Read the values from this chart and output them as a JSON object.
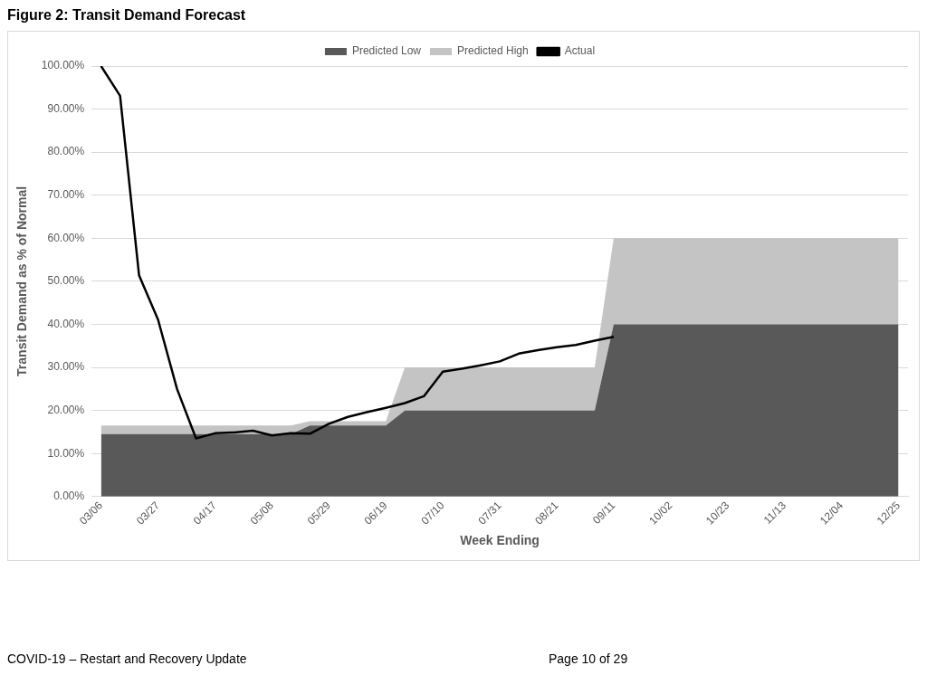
{
  "chart_data": {
    "type": "area",
    "title": "Figure 2: Transit Demand Forecast",
    "xlabel": "Week Ending",
    "ylabel": "Transit Demand as % of Normal",
    "categories": [
      "03/06",
      null,
      null,
      "03/27",
      null,
      null,
      "04/17",
      null,
      null,
      "05/08",
      null,
      null,
      "05/29",
      null,
      null,
      "06/19",
      null,
      null,
      "07/10",
      null,
      null,
      "07/31",
      null,
      null,
      "08/21",
      null,
      null,
      "09/11",
      null,
      null,
      "10/02",
      null,
      null,
      "10/23",
      null,
      null,
      "11/13",
      null,
      null,
      "12/04",
      null,
      null,
      "12/25"
    ],
    "series": [
      {
        "name": "Predicted Low",
        "type": "area",
        "color": "#595959",
        "values": [
          14.5,
          14.5,
          14.5,
          14.5,
          14.5,
          14.5,
          14.5,
          14.5,
          14.5,
          14.5,
          14.5,
          16.5,
          16.5,
          16.5,
          16.5,
          16.5,
          20,
          20,
          20,
          20,
          20,
          20,
          20,
          20,
          20,
          20,
          20,
          40,
          40,
          40,
          40,
          40,
          40,
          40,
          40,
          40,
          40,
          40,
          40,
          40,
          40,
          40,
          40
        ]
      },
      {
        "name": "Predicted High",
        "type": "area",
        "color": "#c4c4c4",
        "values": [
          2,
          2,
          2,
          2,
          2,
          2,
          2,
          2,
          2,
          2,
          2,
          1,
          1,
          1,
          1,
          1,
          10,
          10,
          10,
          10,
          10,
          10,
          10,
          10,
          10,
          10,
          10,
          20,
          20,
          20,
          20,
          20,
          20,
          20,
          20,
          20,
          20,
          20,
          20,
          20,
          20,
          20,
          20
        ]
      },
      {
        "name": "Actual",
        "type": "line",
        "color": "#000000",
        "values": [
          100,
          93.1,
          51.4,
          41.1,
          25.0,
          13.5,
          14.7,
          14.9,
          15.3,
          14.2,
          14.7,
          14.6,
          16.9,
          18.5,
          19.6,
          20.6,
          21.7,
          23.3,
          29.0,
          29.7,
          30.5,
          31.4,
          33.2,
          34.0,
          34.7,
          35.2,
          36.2,
          37.1,
          null,
          null,
          null,
          null,
          null,
          null,
          null,
          null,
          null,
          null,
          null,
          null,
          null,
          null,
          null
        ]
      }
    ],
    "stacked": true,
    "ylim": [
      0,
      100
    ],
    "yticks": [
      {
        "value": 0,
        "label": "0.00%"
      },
      {
        "value": 10,
        "label": "10.00%"
      },
      {
        "value": 20,
        "label": "20.00%"
      },
      {
        "value": 30,
        "label": "30.00%"
      },
      {
        "value": 40,
        "label": "40.00%"
      },
      {
        "value": 50,
        "label": "50.00%"
      },
      {
        "value": 60,
        "label": "60.00%"
      },
      {
        "value": 70,
        "label": "70.00%"
      },
      {
        "value": 80,
        "label": "80.00%"
      },
      {
        "value": 90,
        "label": "90.00%"
      },
      {
        "value": 100,
        "label": "100.00%"
      }
    ],
    "grid": "y",
    "legend": "top",
    "marker": "none",
    "line_style": "solid",
    "annotations": [
      "COVID-19 – Restart and Recovery Update",
      "Page 10 of 29"
    ]
  }
}
